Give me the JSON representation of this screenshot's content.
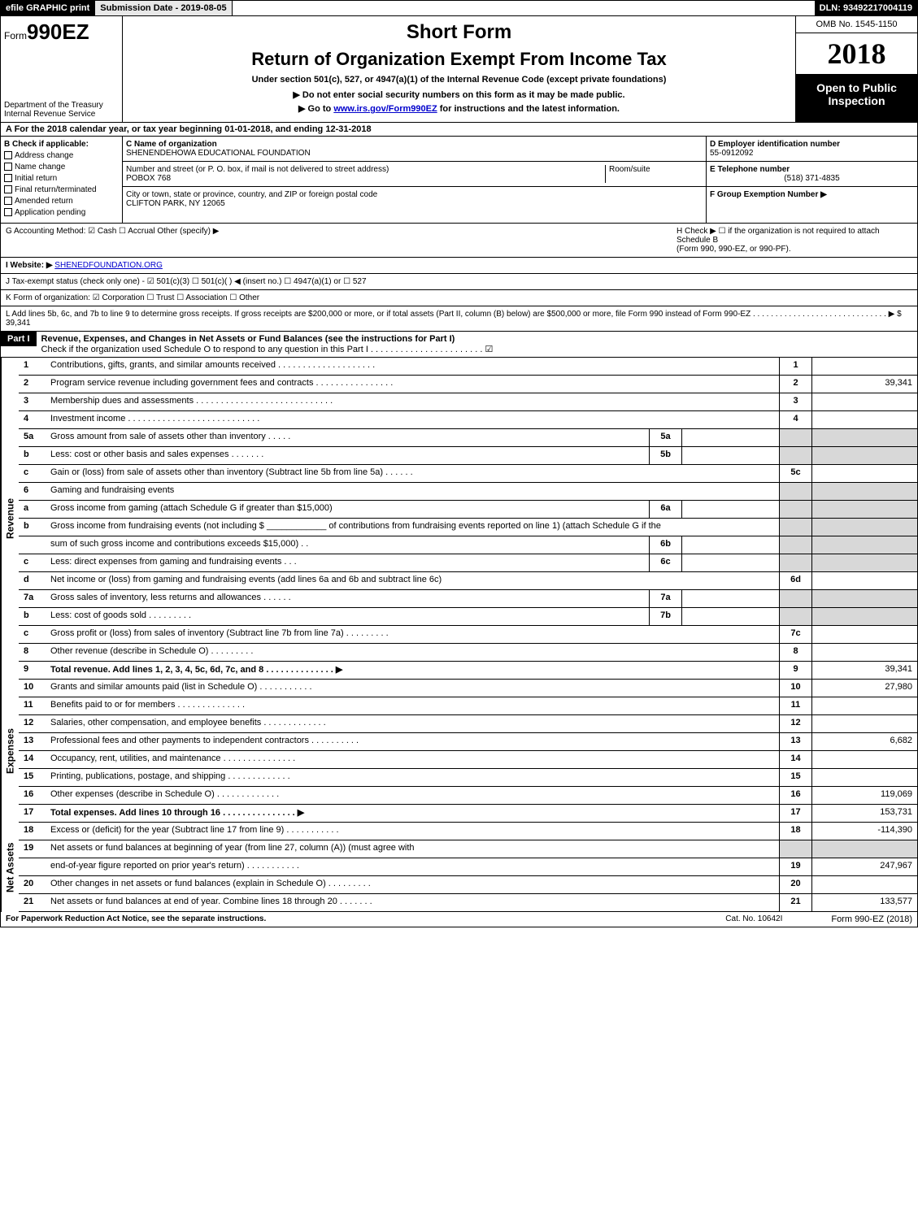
{
  "top": {
    "efile": "efile GRAPHIC print",
    "submission": "Submission Date - 2019-08-05",
    "dln": "DLN: 93492217004119"
  },
  "header": {
    "form_prefix": "Form",
    "form_number": "990EZ",
    "dept1": "Department of the Treasury",
    "dept2": "Internal Revenue Service",
    "short_form": "Short Form",
    "return_title": "Return of Organization Exempt From Income Tax",
    "subtitle": "Under section 501(c), 527, or 4947(a)(1) of the Internal Revenue Code (except private foundations)",
    "instr1": "▶ Do not enter social security numbers on this form as it may be made public.",
    "instr2_pre": "▶ Go to ",
    "instr2_link": "www.irs.gov/Form990EZ",
    "instr2_post": " for instructions and the latest information.",
    "omb": "OMB No. 1545-1150",
    "year": "2018",
    "open_public1": "Open to Public",
    "open_public2": "Inspection"
  },
  "section_a": {
    "text_pre": "A  For the 2018 calendar year, or tax year beginning ",
    "begin": "01-01-2018",
    "mid": ", and ending ",
    "end": "12-31-2018"
  },
  "col_b": {
    "header": "B  Check if applicable:",
    "items": [
      "Address change",
      "Name change",
      "Initial return",
      "Final return/terminated",
      "Amended return",
      "Application pending"
    ]
  },
  "col_c": {
    "name_label": "C Name of organization",
    "name": "SHENENDEHOWA EDUCATIONAL FOUNDATION",
    "addr_label": "Number and street (or P. O. box, if mail is not delivered to street address)",
    "addr": "POBOX 768",
    "room_label": "Room/suite",
    "city_label": "City or town, state or province, country, and ZIP or foreign postal code",
    "city": "CLIFTON PARK, NY  12065"
  },
  "col_de": {
    "d_label": "D Employer identification number",
    "d_val": "55-0912092",
    "e_label": "E Telephone number",
    "e_val": "(518) 371-4835",
    "f_label": "F Group Exemption Number  ▶"
  },
  "row_g": {
    "left": "G Accounting Method:   ☑ Cash   ☐ Accrual   Other (specify) ▶ ",
    "right1": "H  Check ▶  ☐  if the organization is not required to attach Schedule B",
    "right2": "(Form 990, 990-EZ, or 990-PF)."
  },
  "row_i": {
    "label": "I Website: ▶",
    "link": "SHENEDFOUNDATION.ORG"
  },
  "row_j": "J Tax-exempt status (check only one) -  ☑ 501(c)(3)  ☐ 501(c)(  ) ◀ (insert no.)  ☐ 4947(a)(1) or  ☐ 527",
  "row_k": "K Form of organization:   ☑ Corporation   ☐ Trust   ☐ Association   ☐ Other",
  "row_l": {
    "text": "L Add lines 5b, 6c, and 7b to line 9 to determine gross receipts. If gross receipts are $200,000 or more, or if total assets (Part II, column (B) below) are $500,000 or more, file Form 990 instead of Form 990-EZ  . . . . . . . . . . . . . . . . . . . . . . . . . . . . . .  ▶ ",
    "amount": "$ 39,341"
  },
  "part1": {
    "label": "Part I",
    "title": "Revenue, Expenses, and Changes in Net Assets or Fund Balances (see the instructions for Part I)",
    "check_line": "Check if the organization used Schedule O to respond to any question in this Part I . . . . . . . . . . . . . . . . . . . . . . .   ☑"
  },
  "sections": {
    "revenue_label": "Revenue",
    "expenses_label": "Expenses",
    "netassets_label": "Net Assets"
  },
  "lines": [
    {
      "section": "revenue",
      "num": "1",
      "desc": "Contributions, gifts, grants, and similar amounts received  . . . . . . . . . . . . . . . . . . . .",
      "rnum": "1",
      "rval": ""
    },
    {
      "section": "revenue",
      "num": "2",
      "desc": "Program service revenue including government fees and contracts  . . . . . . . . . . . . . . . .",
      "rnum": "2",
      "rval": "39,341"
    },
    {
      "section": "revenue",
      "num": "3",
      "desc": "Membership dues and assessments  . . . . . . . . . . . . . . . . . . . . . . . . . . . .",
      "rnum": "3",
      "rval": ""
    },
    {
      "section": "revenue",
      "num": "4",
      "desc": "Investment income  . . . . . . . . . . . . . . . . . . . . . . . . . . .",
      "rnum": "4",
      "rval": ""
    },
    {
      "section": "revenue",
      "num": "5a",
      "desc": "Gross amount from sale of assets other than inventory  . . . . .",
      "mnum": "5a",
      "mval": "",
      "shaded": true
    },
    {
      "section": "revenue",
      "num": "b",
      "desc": "Less: cost or other basis and sales expenses  . . . . . . .",
      "mnum": "5b",
      "mval": "",
      "shaded": true
    },
    {
      "section": "revenue",
      "num": "c",
      "desc": "Gain or (loss) from sale of assets other than inventory (Subtract line 5b from line 5a)        .   .   .   .   .   .",
      "rnum": "5c",
      "rval": ""
    },
    {
      "section": "revenue",
      "num": "6",
      "desc": "Gaming and fundraising events",
      "shaded": true
    },
    {
      "section": "revenue",
      "num": "a",
      "desc": "Gross income from gaming (attach Schedule G if greater than $15,000)",
      "mnum": "6a",
      "mval": "",
      "shaded": true
    },
    {
      "section": "revenue",
      "num": "b",
      "desc": "Gross income from fundraising events (not including $ ____________ of contributions from fundraising events reported on line 1) (attach Schedule G if the",
      "shaded": true,
      "tall": true
    },
    {
      "section": "revenue",
      "num": "",
      "desc": "sum of such gross income and contributions exceeds $15,000)        .   .",
      "mnum": "6b",
      "mval": "",
      "shaded": true
    },
    {
      "section": "revenue",
      "num": "c",
      "desc": "Less: direct expenses from gaming and fundraising events        .   .   .",
      "mnum": "6c",
      "mval": "",
      "shaded": true
    },
    {
      "section": "revenue",
      "num": "d",
      "desc": "Net income or (loss) from gaming and fundraising events (add lines 6a and 6b and subtract line 6c)",
      "rnum": "6d",
      "rval": ""
    },
    {
      "section": "revenue",
      "num": "7a",
      "desc": "Gross sales of inventory, less returns and allowances           .   .   .   .   .   .",
      "mnum": "7a",
      "mval": "",
      "shaded": true
    },
    {
      "section": "revenue",
      "num": "b",
      "desc": "Less: cost of goods sold                     .   .   .   .   .   .   .   .   .",
      "mnum": "7b",
      "mval": "",
      "shaded": true
    },
    {
      "section": "revenue",
      "num": "c",
      "desc": "Gross profit or (loss) from sales of inventory (Subtract line 7b from line 7a)        .   .   .   .   .   .   .   .   .",
      "rnum": "7c",
      "rval": ""
    },
    {
      "section": "revenue",
      "num": "8",
      "desc": "Other revenue (describe in Schedule O)                 .   .   .   .   .   .   .   .   .",
      "rnum": "8",
      "rval": ""
    },
    {
      "section": "revenue",
      "num": "9",
      "desc": "Total revenue. Add lines 1, 2, 3, 4, 5c, 6d, 7c, and 8          .   .   .   .   .   .   .   .   .   .   .   .   .   .   ▶",
      "rnum": "9",
      "rval": "39,341",
      "bold": true
    },
    {
      "section": "expenses",
      "num": "10",
      "desc": "Grants and similar amounts paid (list in Schedule O)           .   .   .   .   .   .   .   .   .   .   .",
      "rnum": "10",
      "rval": "27,980"
    },
    {
      "section": "expenses",
      "num": "11",
      "desc": "Benefits paid to or for members                 .   .   .   .   .   .   .   .   .   .   .   .   .   .",
      "rnum": "11",
      "rval": ""
    },
    {
      "section": "expenses",
      "num": "12",
      "desc": "Salaries, other compensation, and employee benefits         .   .   .   .   .   .   .   .   .   .   .   .   .",
      "rnum": "12",
      "rval": ""
    },
    {
      "section": "expenses",
      "num": "13",
      "desc": "Professional fees and other payments to independent contractors       .   .   .   .   .   .   .   .   .   .",
      "rnum": "13",
      "rval": "6,682"
    },
    {
      "section": "expenses",
      "num": "14",
      "desc": "Occupancy, rent, utilities, and maintenance          .   .   .   .   .   .   .   .   .   .   .   .   .   .   .",
      "rnum": "14",
      "rval": ""
    },
    {
      "section": "expenses",
      "num": "15",
      "desc": "Printing, publications, postage, and shipping           .   .   .   .   .   .   .   .   .   .   .   .   .",
      "rnum": "15",
      "rval": ""
    },
    {
      "section": "expenses",
      "num": "16",
      "desc": "Other expenses (describe in Schedule O)              .   .   .   .   .   .   .   .   .   .   .   .   .",
      "rnum": "16",
      "rval": "119,069"
    },
    {
      "section": "expenses",
      "num": "17",
      "desc": "Total expenses. Add lines 10 through 16            .   .   .   .   .   .   .   .   .   .   .   .   .   .   .   ▶",
      "rnum": "17",
      "rval": "153,731",
      "bold": true
    },
    {
      "section": "netassets",
      "num": "18",
      "desc": "Excess or (deficit) for the year (Subtract line 17 from line 9)         .   .   .   .   .   .   .   .   .   .   .",
      "rnum": "18",
      "rval": "-114,390"
    },
    {
      "section": "netassets",
      "num": "19",
      "desc": "Net assets or fund balances at beginning of year (from line 27, column (A)) (must agree with",
      "shaded": true
    },
    {
      "section": "netassets",
      "num": "",
      "desc": "end-of-year figure reported on prior year's return)           .   .   .   .   .   .   .   .   .   .   .",
      "rnum": "19",
      "rval": "247,967"
    },
    {
      "section": "netassets",
      "num": "20",
      "desc": "Other changes in net assets or fund balances (explain in Schedule O)       .   .   .   .   .   .   .   .   .",
      "rnum": "20",
      "rval": ""
    },
    {
      "section": "netassets",
      "num": "21",
      "desc": "Net assets or fund balances at end of year. Combine lines 18 through 20         .   .   .   .   .   .   .",
      "rnum": "21",
      "rval": "133,577"
    }
  ],
  "footer": {
    "left": "For Paperwork Reduction Act Notice, see the separate instructions.",
    "cat": "Cat. No. 10642I",
    "form": "Form 990-EZ (2018)"
  }
}
